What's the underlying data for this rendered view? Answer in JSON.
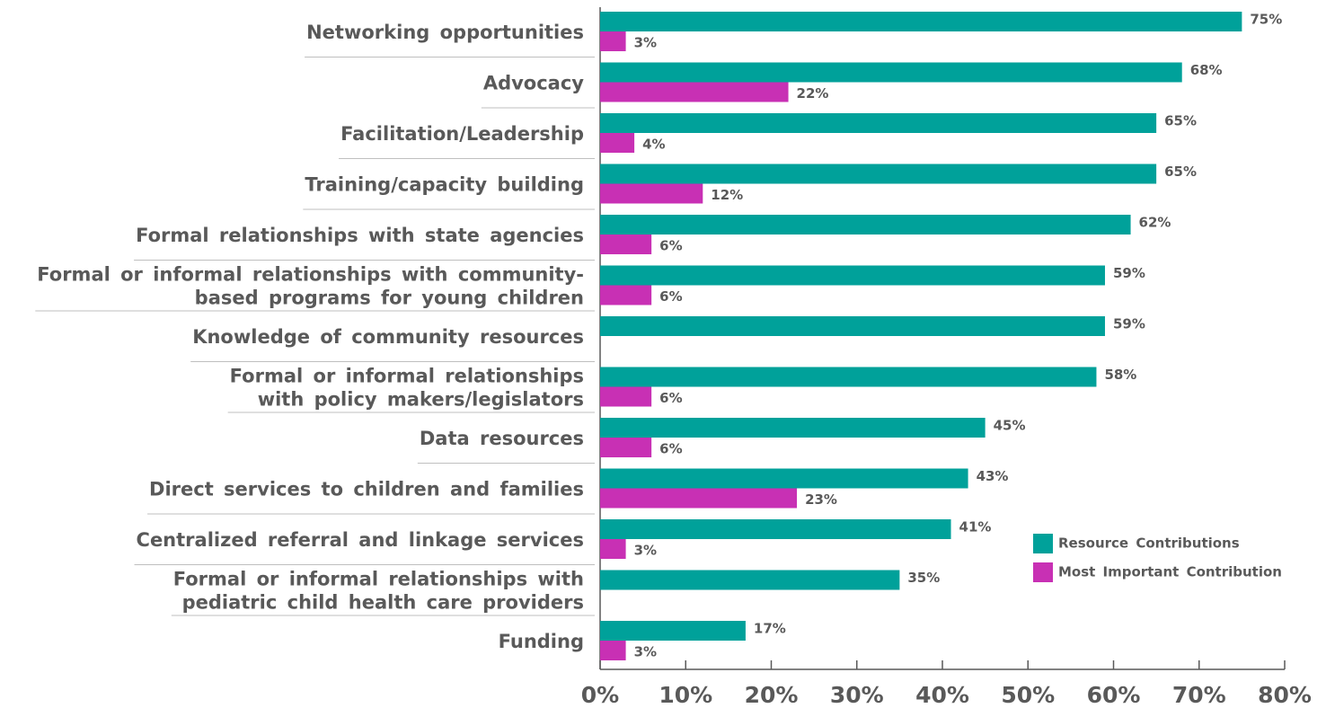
{
  "chart_data": {
    "type": "bar",
    "orientation": "horizontal",
    "categories": [
      "Networking opportunities",
      "Advocacy",
      "Facilitation/Leadership",
      "Training/capacity building",
      "Formal relationships with state agencies",
      "Formal or informal relationships with community-\nbased programs for young children",
      "Knowledge of community resources",
      "Formal or informal relationships\nwith policy makers/legislators",
      "Data resources",
      "Direct services to children and families",
      "Centralized referral and linkage services",
      "Formal or informal relationships with\npediatric child health care providers",
      "Funding"
    ],
    "series": [
      {
        "name": "Resource Contributions",
        "color": "#00a19a",
        "values": [
          75,
          68,
          65,
          65,
          62,
          59,
          59,
          58,
          45,
          43,
          41,
          35,
          17
        ],
        "value_labels": [
          "75%",
          "68%",
          "65%",
          "65%",
          "62%",
          "59%",
          "59%",
          "58%",
          "45%",
          "43%",
          "41%",
          "35%",
          "17%"
        ]
      },
      {
        "name": "Most Important Contribution",
        "color": "#c830b4",
        "values": [
          3,
          22,
          4,
          12,
          6,
          6,
          null,
          6,
          6,
          23,
          3,
          null,
          3
        ],
        "value_labels": [
          "3%",
          "22%",
          "4%",
          "12%",
          "6%",
          "6%",
          null,
          "6%",
          "6%",
          "23%",
          "3%",
          null,
          "3%"
        ]
      }
    ],
    "xlim": [
      0,
      80
    ],
    "xticks": [
      {
        "value": 0,
        "label": "0%"
      },
      {
        "value": 10,
        "label": "10%"
      },
      {
        "value": 20,
        "label": "20%"
      },
      {
        "value": 30,
        "label": "30%"
      },
      {
        "value": 40,
        "label": "40%"
      },
      {
        "value": 50,
        "label": "50%"
      },
      {
        "value": 60,
        "label": "60%"
      },
      {
        "value": 70,
        "label": "70%"
      },
      {
        "value": 80,
        "label": "80%"
      }
    ],
    "legend": "lower right"
  }
}
